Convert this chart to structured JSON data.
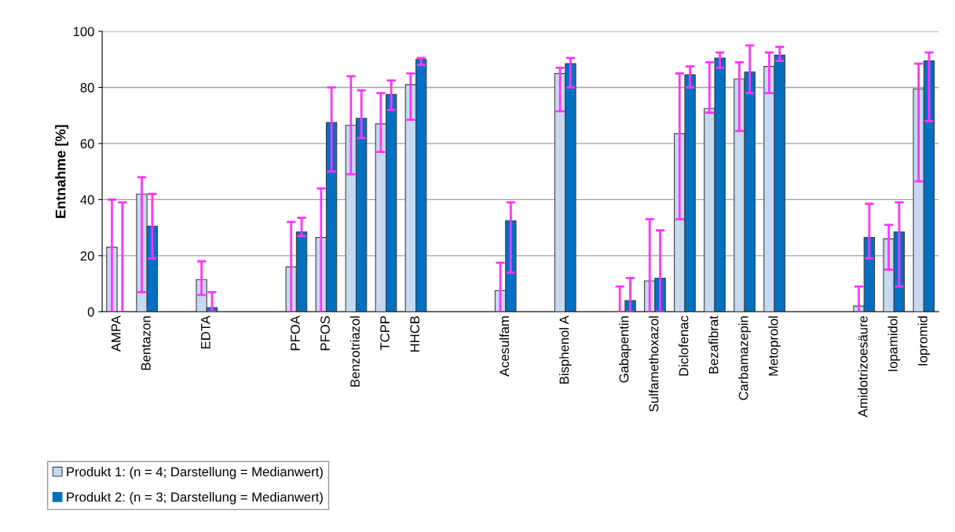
{
  "chart_data": {
    "type": "bar",
    "ylabel": "Entnahme [%]",
    "categories": [
      "AMPA",
      "Bentazon",
      null,
      "EDTA",
      null,
      null,
      "PFOA",
      "PFOS",
      "Benzotriazol",
      "TCPP",
      "HHCB",
      null,
      null,
      "Acesulfam",
      null,
      "Bisphenol A",
      null,
      "Gabapentin",
      "Sulfamethoxazol",
      "Diclofenac",
      "Bezafibrat",
      "Carbamazepin",
      "Metoprolol",
      null,
      null,
      "Amidotrizoesäure",
      "Iopamidol",
      "Iopromid"
    ],
    "series": [
      {
        "name": "Produkt 1: (n = 4; Darstellung = Medianwert)",
        "color": "#c6d9f1",
        "values": [
          23,
          42,
          null,
          11.5,
          null,
          null,
          16,
          26.5,
          66.5,
          67,
          81,
          null,
          null,
          7.5,
          null,
          85,
          null,
          0,
          11,
          63.5,
          72.5,
          83,
          87.5,
          null,
          null,
          2,
          26,
          79.5
        ],
        "errors": [
          [
            0,
            40
          ],
          [
            7,
            48
          ],
          null,
          [
            6,
            18
          ],
          null,
          null,
          [
            0,
            32
          ],
          [
            0,
            44
          ],
          [
            49,
            84
          ],
          [
            57,
            78
          ],
          [
            68.5,
            85
          ],
          null,
          null,
          [
            0,
            17.5
          ],
          null,
          [
            71.5,
            87
          ],
          null,
          [
            0,
            9
          ],
          [
            0,
            33
          ],
          [
            33,
            85
          ],
          [
            71,
            89
          ],
          [
            64.5,
            89
          ],
          [
            78,
            92.5
          ],
          null,
          null,
          [
            0,
            9
          ],
          [
            15,
            31
          ],
          [
            46.5,
            88.5
          ]
        ]
      },
      {
        "name": "Produkt 2: (n = 3; Darstellung = Medianwert)",
        "color": "#0070c0",
        "values": [
          0,
          30.5,
          null,
          1.5,
          null,
          null,
          28.5,
          67.5,
          69,
          77.5,
          90,
          null,
          null,
          32.5,
          null,
          88.5,
          null,
          4,
          12,
          84.5,
          90.5,
          85.5,
          91.5,
          null,
          null,
          26.5,
          28.5,
          89.5
        ],
        "errors": [
          [
            0,
            39
          ],
          [
            19,
            42
          ],
          null,
          [
            0,
            7
          ],
          null,
          null,
          [
            27,
            33.5
          ],
          [
            50,
            80
          ],
          [
            62,
            79
          ],
          [
            72,
            82.5
          ],
          [
            88,
            90.5
          ],
          null,
          null,
          [
            14,
            39
          ],
          null,
          [
            80,
            90.5
          ],
          null,
          [
            0,
            12
          ],
          [
            0,
            29
          ],
          [
            80,
            87.5
          ],
          [
            87,
            92.5
          ],
          [
            78,
            95
          ],
          [
            89.5,
            94.5
          ],
          null,
          null,
          [
            19,
            38.5
          ],
          [
            9,
            39
          ],
          [
            68,
            92.5
          ]
        ]
      }
    ],
    "ylim": [
      0,
      100
    ],
    "yticks": [
      0,
      20,
      40,
      60,
      80,
      100
    ],
    "grid": "y",
    "legend": "bottom left"
  }
}
